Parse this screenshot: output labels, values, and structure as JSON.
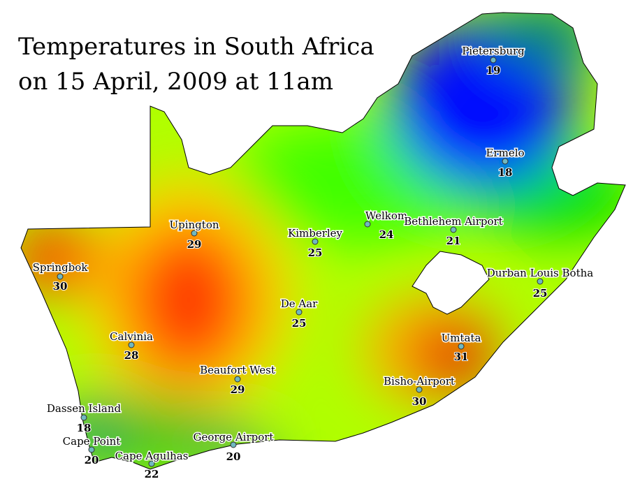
{
  "title": {
    "line1": "Temperatures in South Africa",
    "line2": "on 15 April, 2009 at 11am"
  },
  "colors": {
    "cold": "#0000ff",
    "cool": "#00c040",
    "mild": "#a0ff00",
    "warm": "#ffff00",
    "hot": "#ff3000",
    "hottest": "#c00000"
  },
  "stations": [
    {
      "name": "Pietersburg",
      "temp": "19"
    },
    {
      "name": "Ermelo",
      "temp": "18"
    },
    {
      "name": "Welkom",
      "temp": "24"
    },
    {
      "name": "Bethlehem Airport",
      "temp": "21"
    },
    {
      "name": "Kimberley",
      "temp": "25"
    },
    {
      "name": "Upington",
      "temp": "29"
    },
    {
      "name": "Springbok",
      "temp": "30"
    },
    {
      "name": "Durban Louis Botha",
      "temp": "25"
    },
    {
      "name": "De Aar",
      "temp": "25"
    },
    {
      "name": "Umtata",
      "temp": "31"
    },
    {
      "name": "Calvinia",
      "temp": "28"
    },
    {
      "name": "Beaufort West",
      "temp": "29"
    },
    {
      "name": "Bisho-Airport",
      "temp": "30"
    },
    {
      "name": "Dassen Island",
      "temp": "18"
    },
    {
      "name": "Cape Point",
      "temp": "20"
    },
    {
      "name": "George Airport",
      "temp": "20"
    },
    {
      "name": "Cape Agulhas",
      "temp": "22"
    }
  ]
}
